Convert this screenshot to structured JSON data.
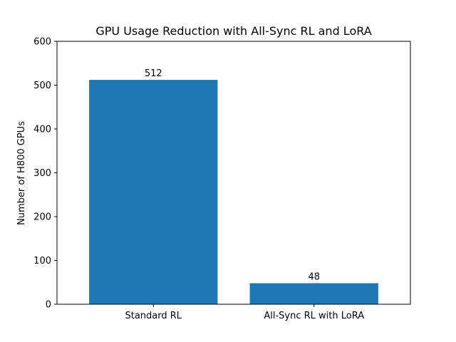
{
  "chart_data": {
    "type": "bar",
    "title": "GPU Usage Reduction with All-Sync RL and LoRA",
    "xlabel": "",
    "ylabel": "Number of H800 GPUs",
    "categories": [
      "Standard RL",
      "All-Sync RL with LoRA"
    ],
    "values": [
      512,
      48
    ],
    "data_labels": [
      "512",
      "48"
    ],
    "ylim": [
      0,
      600
    ],
    "yticks": [
      0,
      100,
      200,
      300,
      400,
      500,
      600
    ],
    "grid": false,
    "legend": "none",
    "bar_color": "#1f77b4"
  }
}
